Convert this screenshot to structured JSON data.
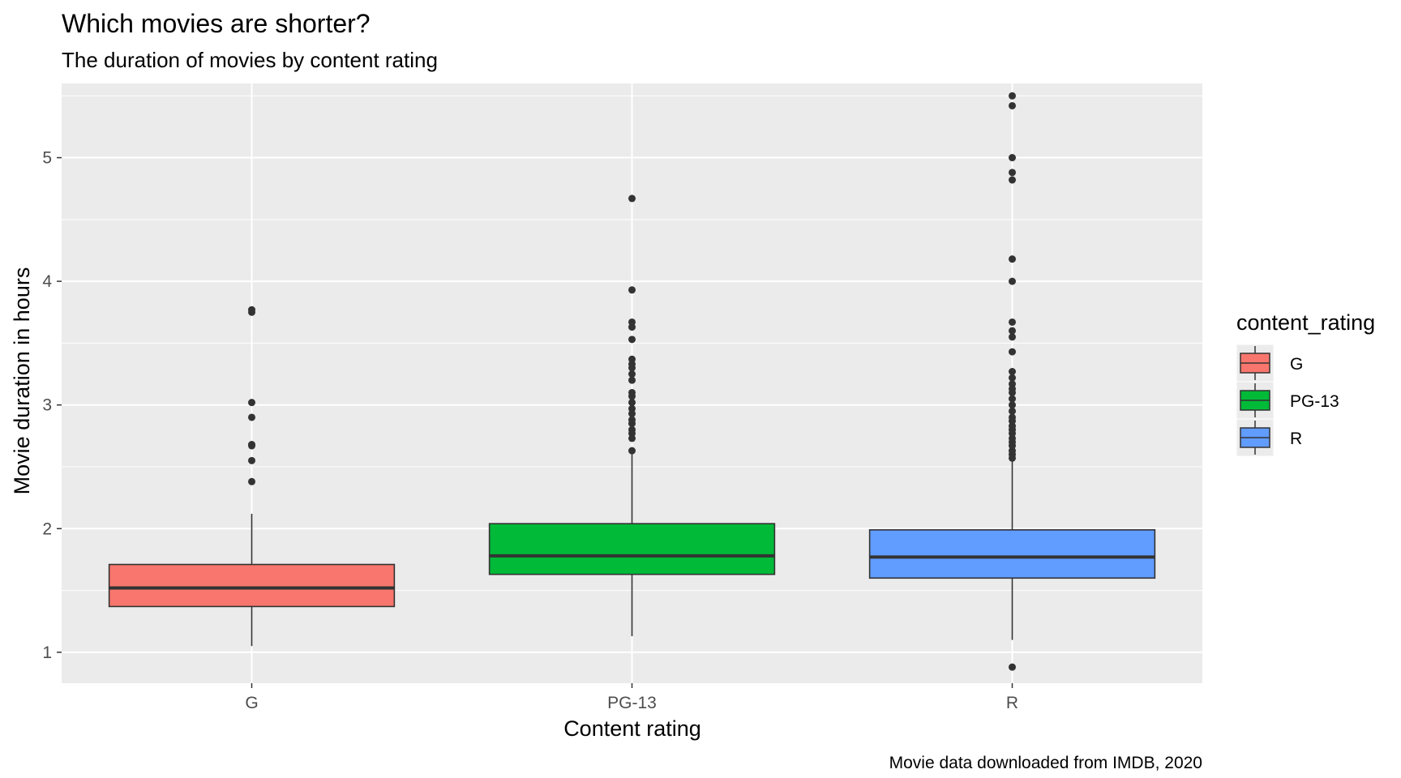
{
  "chart_data": {
    "type": "boxplot",
    "title": "Which movies are shorter?",
    "subtitle": "The duration of movies by content rating",
    "xlabel": "Content rating",
    "ylabel": "Movie duration in hours",
    "caption": "Movie data downloaded from IMDB, 2020",
    "categories": [
      "G",
      "PG-13",
      "R"
    ],
    "ylim": [
      0.75,
      5.6
    ],
    "yticks": [
      1,
      2,
      3,
      4,
      5
    ],
    "grid": true,
    "legend": {
      "title": "content_rating",
      "placement": "right",
      "entries": [
        "G",
        "PG-13",
        "R"
      ]
    },
    "colors": {
      "G": "#F8766D",
      "PG-13": "#00BA38",
      "R": "#619CFF",
      "panel_background": "#EBEBEB",
      "grid": "#FFFFFF",
      "outline": "#333333"
    },
    "series": [
      {
        "name": "G",
        "whisker_low": 1.05,
        "q1": 1.37,
        "median": 1.52,
        "q3": 1.71,
        "whisker_high": 2.12,
        "outliers": [
          2.38,
          2.55,
          2.67,
          2.68,
          2.9,
          3.02,
          3.75,
          3.77
        ]
      },
      {
        "name": "PG-13",
        "whisker_low": 1.13,
        "q1": 1.63,
        "median": 1.78,
        "q3": 2.04,
        "whisker_high": 2.63,
        "outliers": [
          2.63,
          2.73,
          2.77,
          2.8,
          2.85,
          2.88,
          2.93,
          2.97,
          3.02,
          3.07,
          3.1,
          3.2,
          3.25,
          3.3,
          3.33,
          3.37,
          3.53,
          3.63,
          3.67,
          3.93,
          4.67
        ]
      },
      {
        "name": "R",
        "whisker_low": 1.1,
        "q1": 1.6,
        "median": 1.77,
        "q3": 1.99,
        "whisker_high": 2.57,
        "outliers": [
          0.88,
          2.57,
          2.6,
          2.63,
          2.67,
          2.7,
          2.73,
          2.77,
          2.8,
          2.83,
          2.87,
          2.9,
          2.95,
          3.0,
          3.05,
          3.1,
          3.13,
          3.17,
          3.22,
          3.27,
          3.43,
          3.55,
          3.6,
          3.67,
          4.0,
          4.18,
          4.82,
          4.88,
          5.0,
          5.42,
          5.5
        ]
      }
    ]
  }
}
